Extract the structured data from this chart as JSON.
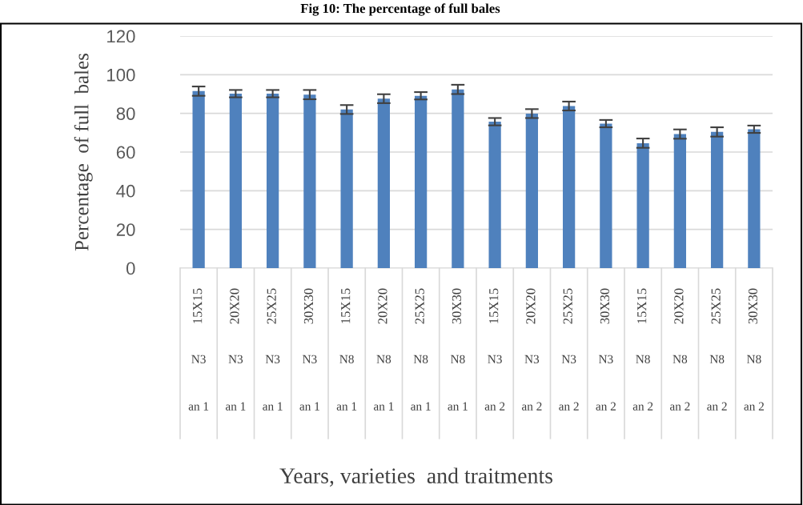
{
  "chart_data": {
    "type": "bar",
    "title": "Fig 10: The percentage of full bales",
    "annotations": [
      "Years, varieties  and traitments"
    ],
    "ylabel": "Percentage  of full  bales",
    "categories": [
      "15X15\nN3\nan 1",
      "20X20\nN3\nan 1",
      "25X25\nN3\nan 1",
      "30X30\nN3\nan 1",
      "15X15\nN8\nan 1",
      "20X20\nN8\nan 1",
      "25X25\nN8\nan 1",
      "30X30\nN8\nan 1",
      "15X15\nN3\nan 2",
      "20X20\nN3\nan 2",
      "25X25\nN3\nan 2",
      "30X30\nN3\nan 2",
      "15X15\nN8\nan 2",
      "20X20\nN8\nan 2",
      "25X25\nN8\nan 2",
      "30X30\nN8\nan 2"
    ],
    "values": [
      91.5,
      90.2,
      90.2,
      89.7,
      82.0,
      87.6,
      89.1,
      92.4,
      75.7,
      79.9,
      83.8,
      74.7,
      64.6,
      69.3,
      70.4,
      71.8
    ],
    "errors": [
      2.4,
      1.9,
      1.9,
      2.4,
      2.3,
      2.3,
      1.9,
      2.4,
      1.9,
      2.3,
      2.3,
      1.9,
      2.4,
      2.4,
      2.4,
      1.9
    ],
    "color": "#4f81bd",
    "ylim": [
      0,
      120
    ],
    "yticks": [
      0,
      20,
      40,
      60,
      80,
      100,
      120
    ],
    "grid": "y"
  }
}
